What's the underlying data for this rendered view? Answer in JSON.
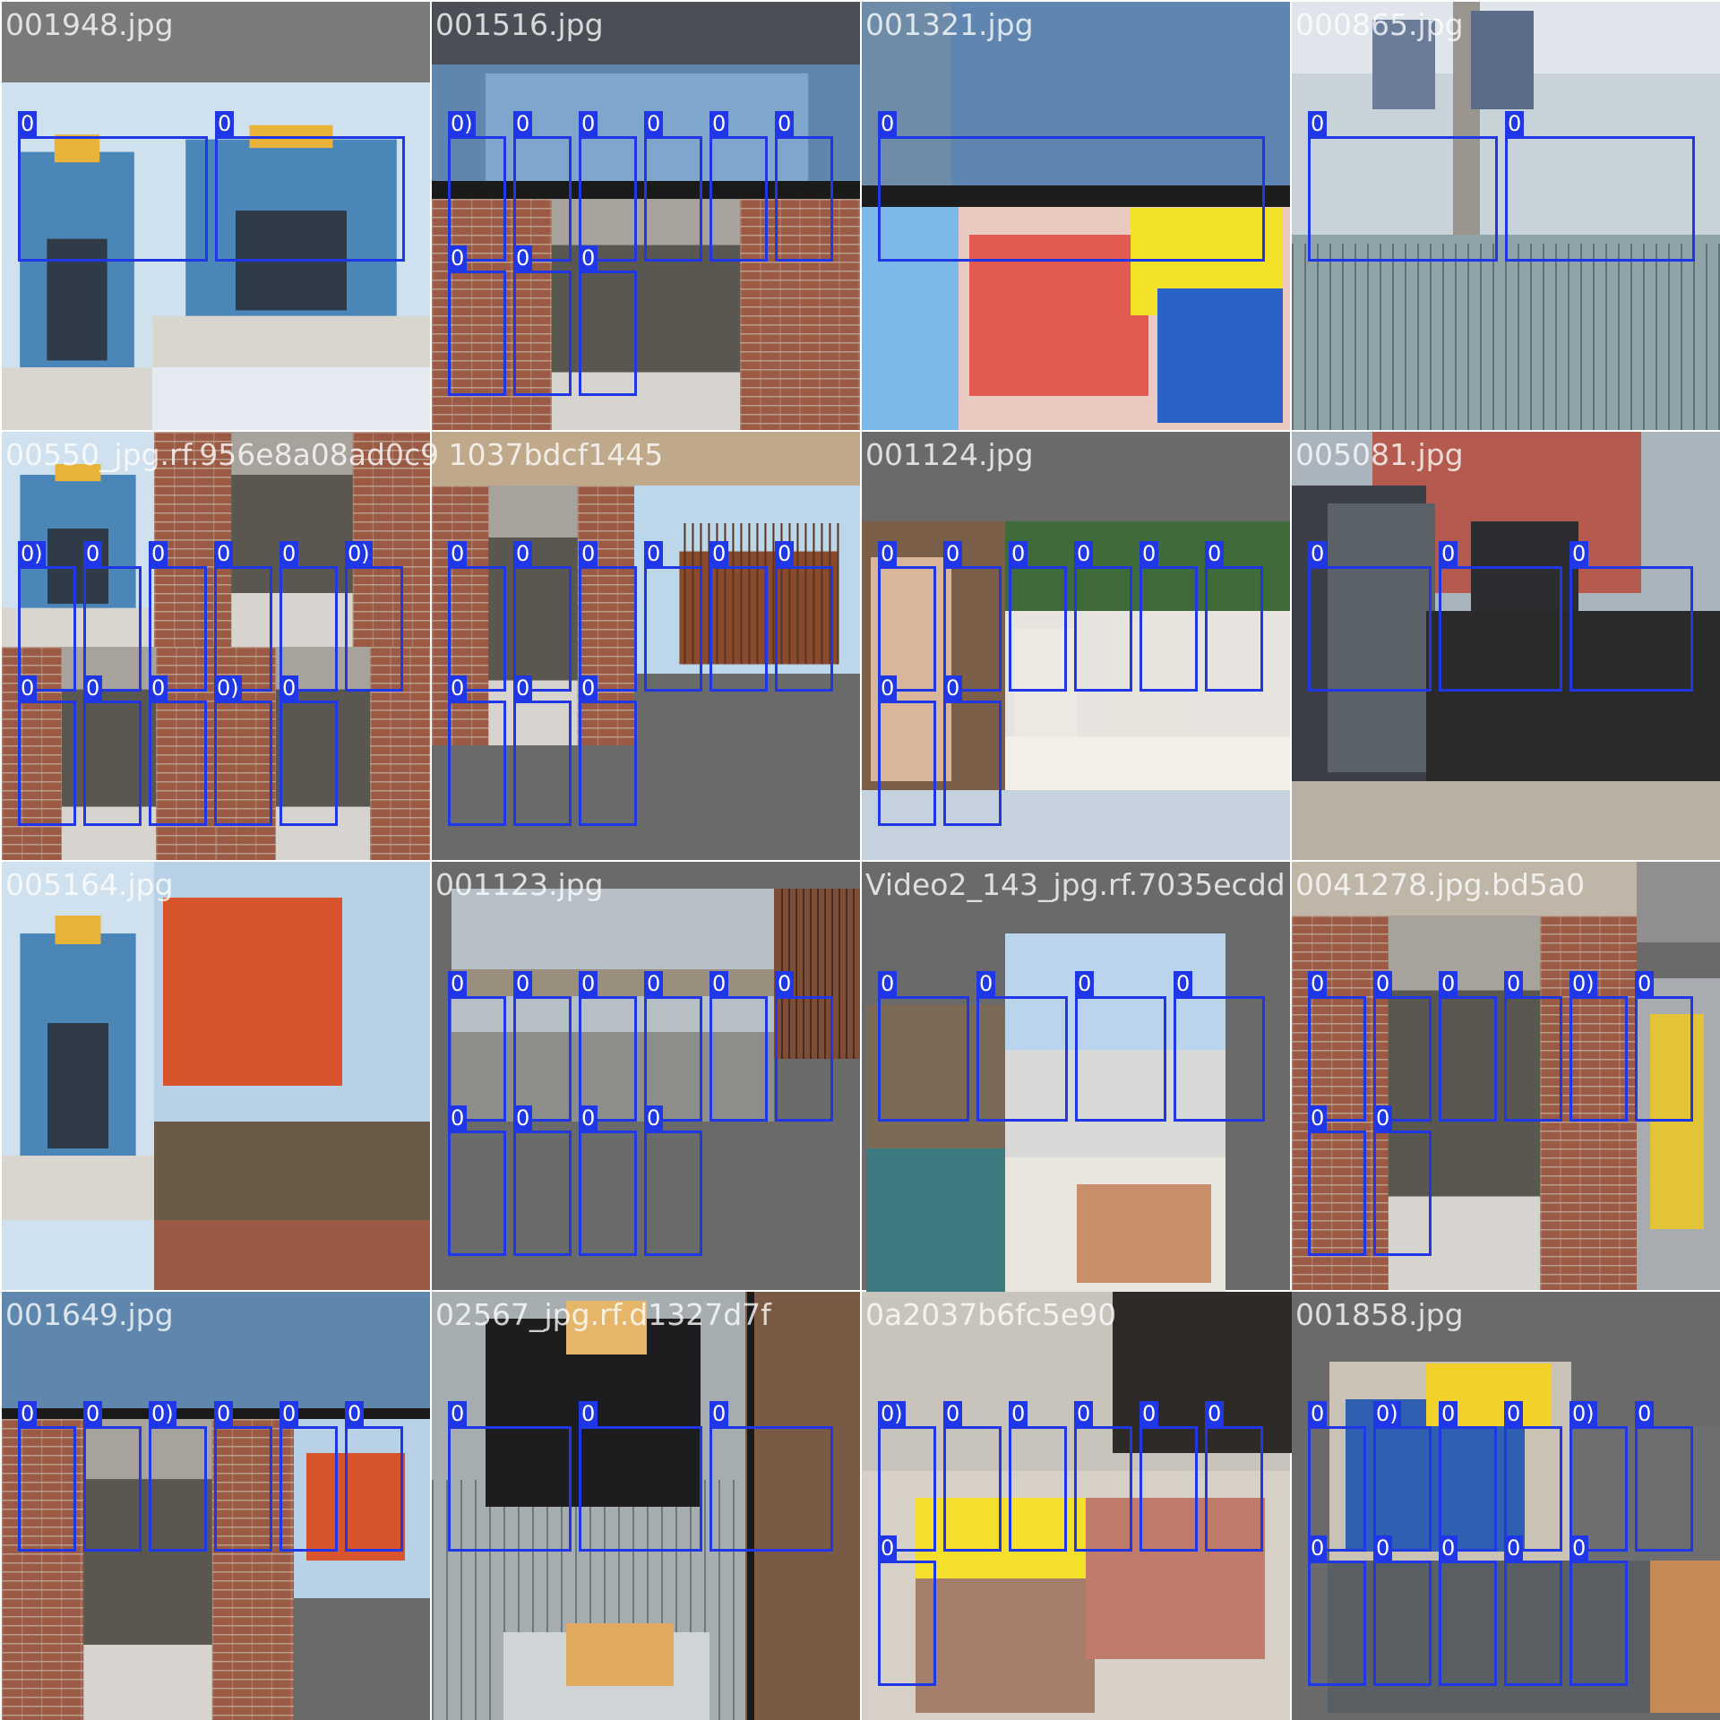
{
  "colors": {
    "box": "#1f37e6",
    "label_text": "#ffffff",
    "pad": "#6f6f6f"
  },
  "tiles": [
    {
      "title": "001948.jpg",
      "scene": "tunnel-formwork",
      "labels": [
        "0",
        "0"
      ]
    },
    {
      "title": "001516.jpg",
      "scene": "brick-corridor-workers",
      "labels": [
        "0)",
        "0",
        "0",
        "0",
        "0",
        "0",
        "0",
        "0",
        "0"
      ]
    },
    {
      "title": "001321.jpg",
      "scene": "hardhat-closeup",
      "labels": [
        "0"
      ]
    },
    {
      "title": "000865.jpg",
      "scene": "pole-climbers-snow",
      "labels": [
        "0",
        "0"
      ]
    },
    {
      "title": "00550_jpg.rf.956e8a08ad0c9 1037bdcf1445",
      "scene": "corridor-mosaic",
      "labels": [
        "0)",
        "0",
        "0",
        "0",
        "0",
        "0)",
        "0",
        "0",
        "0",
        "0)",
        "0"
      ]
    },
    {
      "title": "",
      "scene": "rebar-workers",
      "labels": [
        "0",
        "0",
        "0",
        "0",
        "0",
        "0",
        "0",
        "0",
        "0"
      ]
    },
    {
      "title": "001124.jpg",
      "scene": "meeting-table",
      "labels": [
        "0",
        "0",
        "0",
        "0",
        "0",
        "0",
        "0",
        "0"
      ]
    },
    {
      "title": "005081.jpg",
      "scene": "umbrella-officials",
      "labels": [
        "0",
        "0",
        "0"
      ]
    },
    {
      "title": "005164.jpg",
      "scene": "excavator",
      "labels": []
    },
    {
      "title": "001123.jpg",
      "scene": "delegation-outdoor",
      "labels": [
        "0",
        "0",
        "0",
        "0",
        "0",
        "0",
        "0",
        "0",
        "0",
        "0"
      ]
    },
    {
      "title": "Video2_143_jpg.rf.7035ecdd",
      "scene": "rooftop-vest",
      "labels": [
        "0",
        "0",
        "0",
        "0"
      ]
    },
    {
      "title": "0041278.jpg.bd5a0",
      "scene": "brick-corridor-2",
      "labels": [
        "0",
        "0",
        "0",
        "0",
        "0)",
        "0",
        "0",
        "0"
      ]
    },
    {
      "title": "001649.jpg",
      "scene": "site-collage",
      "labels": [
        "0",
        "0",
        "0)",
        "0",
        "0",
        "0"
      ]
    },
    {
      "title": "02567_jpg.rf.d1327d7f",
      "scene": "worker-back",
      "labels": [
        "0",
        "0",
        "0"
      ]
    },
    {
      "title": "0a2037b6fc5e90",
      "scene": "yellow-hat-closeup",
      "labels": [
        "0)",
        "0",
        "0",
        "0",
        "0",
        "0",
        "0"
      ]
    },
    {
      "title": "001858.jpg",
      "scene": "crouching-worker",
      "labels": [
        "0",
        "0)",
        "0",
        "0",
        "0)",
        "0",
        "0",
        "0",
        "0",
        "0",
        "0"
      ]
    }
  ]
}
